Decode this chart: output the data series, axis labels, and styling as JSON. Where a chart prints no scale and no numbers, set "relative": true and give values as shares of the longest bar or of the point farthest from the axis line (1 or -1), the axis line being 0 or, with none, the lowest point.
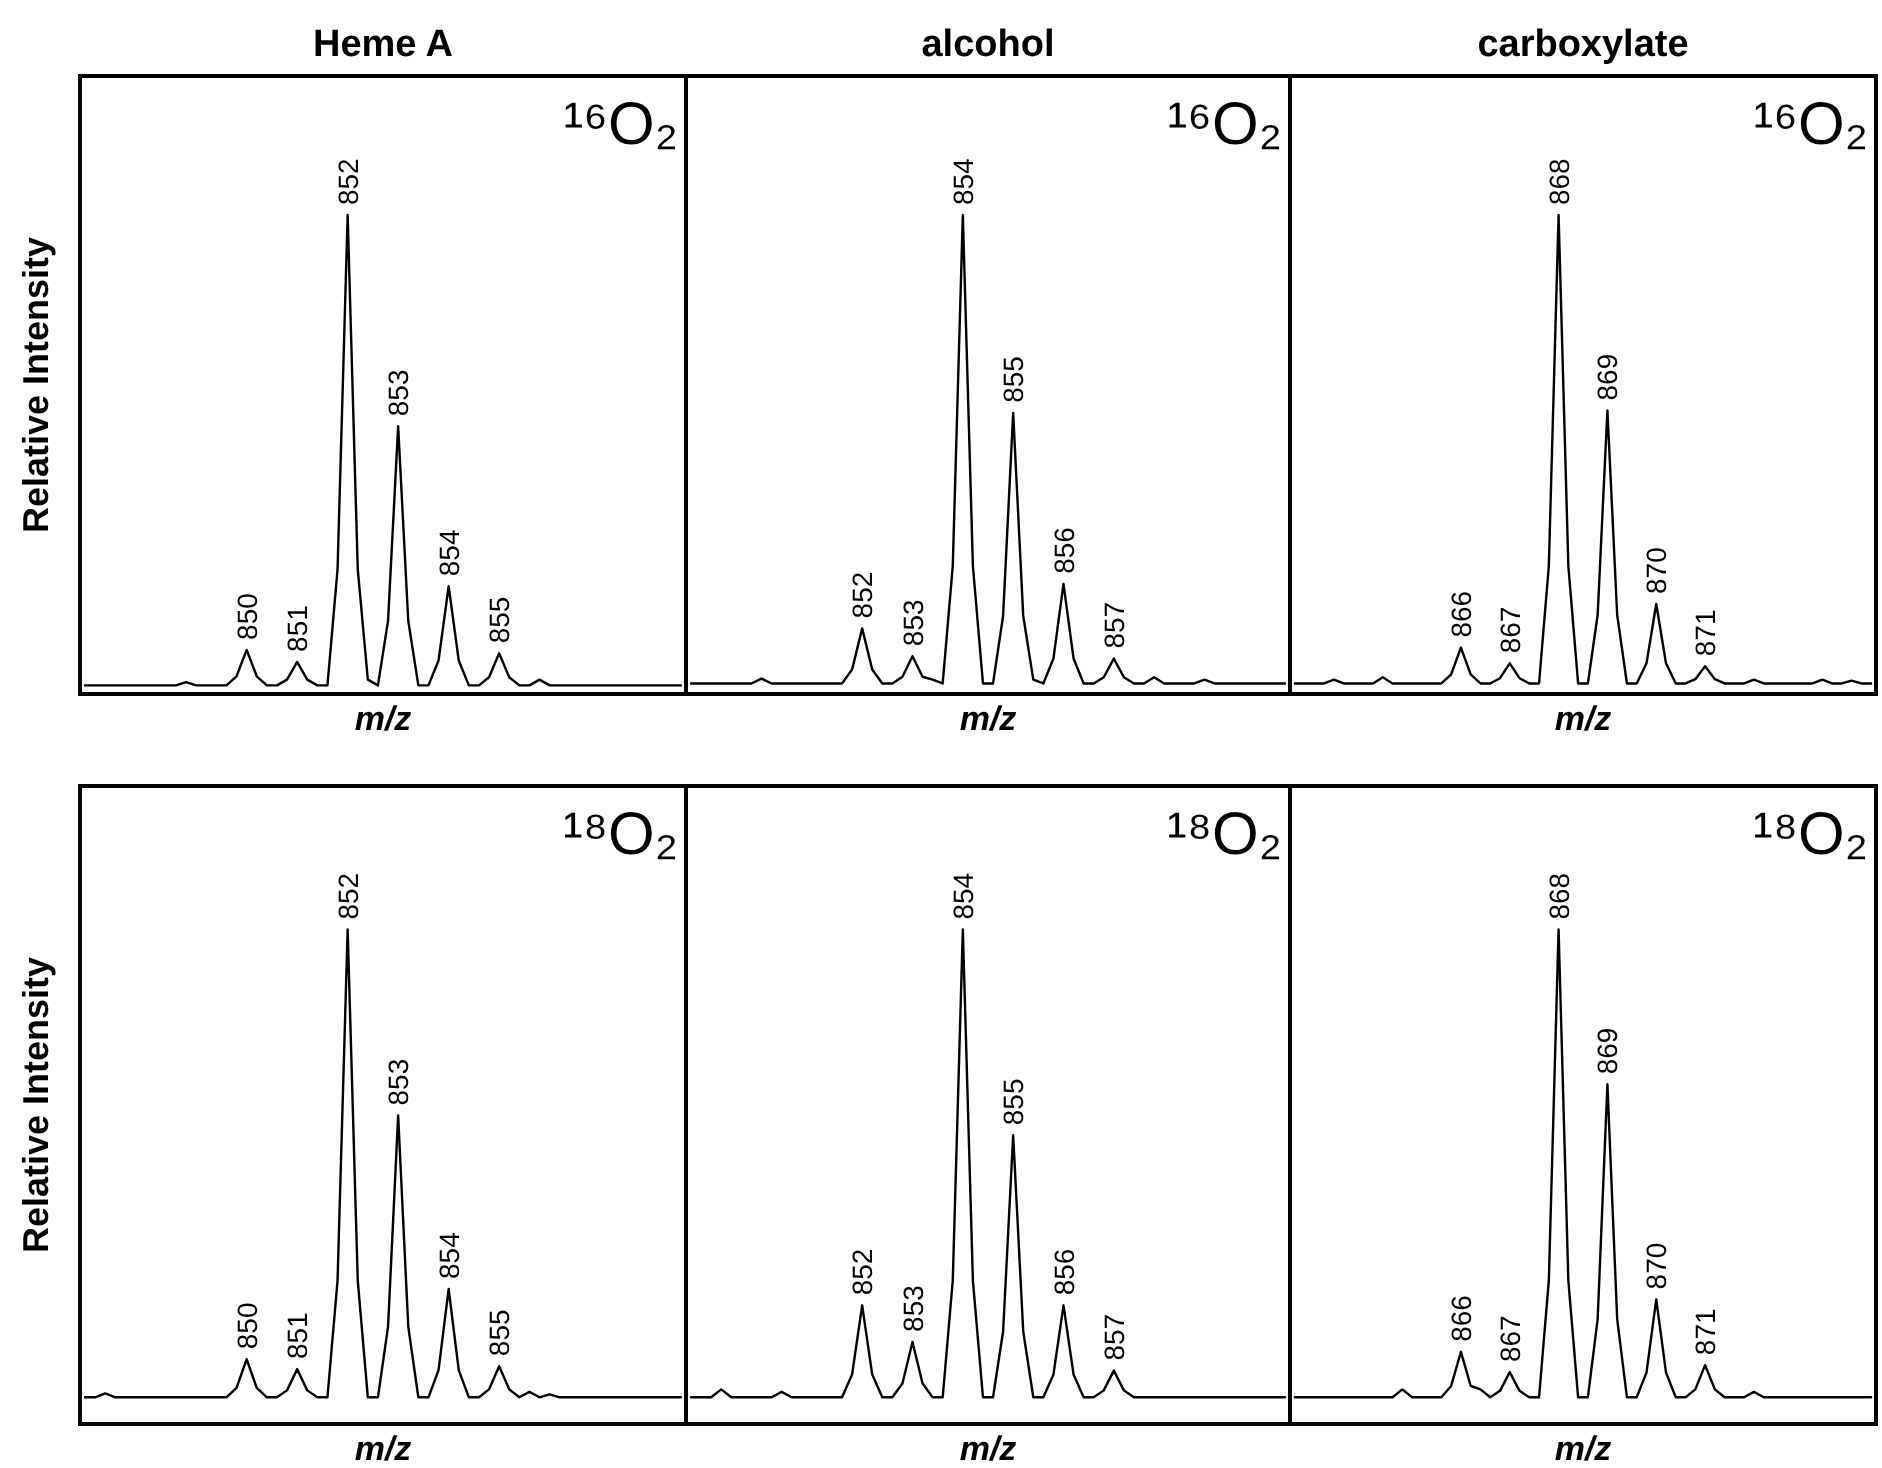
{
  "chart_data": [
    {
      "type": "line",
      "title": "Heme A",
      "xlabel": "m/z",
      "ylabel": "Relative Intensity",
      "relative": true,
      "categories": [
        null,
        null,
        null,
        null,
        null,
        null,
        null,
        null,
        null,
        null,
        null,
        null,
        null,
        null,
        null,
        null,
        null,
        null,
        null,
        null,
        null,
        null,
        null,
        null,
        null,
        null,
        null,
        null,
        null,
        null,
        null,
        null,
        null,
        null,
        null,
        null,
        null,
        null,
        null,
        null,
        null,
        null,
        null,
        null,
        null,
        null,
        null,
        null,
        null,
        null,
        null,
        null,
        null,
        null,
        null,
        null,
        null,
        null,
        null,
        null
      ],
      "series": [
        {
          "color": "#000000",
          "values": [
            0.018,
            0.018,
            0.018,
            0.018,
            0.018,
            0.018,
            0.018,
            0.018,
            0.018,
            0.018,
            0.025,
            0.018,
            0.018,
            0.018,
            0.018,
            0.037,
            0.092,
            0.037,
            0.018,
            0.018,
            0.03,
            0.067,
            0.03,
            0.018,
            0.018,
            0.26,
            1,
            0.26,
            0.03,
            0.018,
            0.153,
            0.559,
            0.153,
            0.018,
            0.018,
            0.07,
            0.225,
            0.07,
            0.018,
            0.018,
            0.035,
            0.085,
            0.035,
            0.018,
            0.018,
            0.03,
            0.018,
            0.018,
            0.018,
            0.018,
            0.018,
            0.018,
            0.018,
            0.018,
            0.018,
            0.018,
            0.018,
            0.018,
            0.018,
            0.018
          ]
        }
      ],
      "annotations": [
        "¹⁶O₂",
        {
          "text": "850",
          "y": 0.092
        },
        {
          "text": "851",
          "y": 0.067
        },
        {
          "text": "852",
          "y": 1
        },
        {
          "text": "853",
          "y": 0.559
        },
        {
          "text": "854",
          "y": 0.225
        },
        {
          "text": "855",
          "y": 0.085
        }
      ]
    },
    {
      "type": "line",
      "title": "alcohol",
      "xlabel": "m/z",
      "relative": true,
      "categories": [
        null,
        null,
        null,
        null,
        null,
        null,
        null,
        null,
        null,
        null,
        null,
        null,
        null,
        null,
        null,
        null,
        null,
        null,
        null,
        null,
        null,
        null,
        null,
        null,
        null,
        null,
        null,
        null,
        null,
        null,
        null,
        null,
        null,
        null,
        null,
        null,
        null,
        null,
        null,
        null,
        null,
        null,
        null,
        null,
        null,
        null,
        null,
        null,
        null,
        null,
        null,
        null,
        null,
        null,
        null,
        null,
        null,
        null,
        null,
        null
      ],
      "series": [
        {
          "color": "#000000",
          "values": [
            0.022,
            0.022,
            0.022,
            0.022,
            0.022,
            0.022,
            0.022,
            0.032,
            0.022,
            0.022,
            0.022,
            0.022,
            0.022,
            0.022,
            0.022,
            0.022,
            0.051,
            0.137,
            0.051,
            0.022,
            0.022,
            0.036,
            0.079,
            0.036,
            0.03,
            0.022,
            0.267,
            1,
            0.267,
            0.022,
            0.022,
            0.163,
            0.587,
            0.163,
            0.03,
            0.022,
            0.074,
            0.23,
            0.074,
            0.022,
            0.022,
            0.035,
            0.074,
            0.035,
            0.022,
            0.022,
            0.035,
            0.022,
            0.022,
            0.022,
            0.022,
            0.03,
            0.022,
            0.022,
            0.022,
            0.022,
            0.022,
            0.022,
            0.022,
            0.022
          ]
        }
      ],
      "annotations": [
        "¹⁶O₂",
        {
          "text": "852",
          "y": 0.137
        },
        {
          "text": "853",
          "y": 0.079
        },
        {
          "text": "854",
          "y": 1
        },
        {
          "text": "855",
          "y": 0.587
        },
        {
          "text": "856",
          "y": 0.23
        },
        {
          "text": "857",
          "y": 0.074
        }
      ]
    },
    {
      "type": "line",
      "title": "carboxylate",
      "xlabel": "m/z",
      "relative": true,
      "categories": [
        null,
        null,
        null,
        null,
        null,
        null,
        null,
        null,
        null,
        null,
        null,
        null,
        null,
        null,
        null,
        null,
        null,
        null,
        null,
        null,
        null,
        null,
        null,
        null,
        null,
        null,
        null,
        null,
        null,
        null,
        null,
        null,
        null,
        null,
        null,
        null,
        null,
        null,
        null,
        null,
        null,
        null,
        null,
        null,
        null,
        null,
        null,
        null,
        null,
        null,
        null,
        null,
        null,
        null,
        null,
        null,
        null,
        null,
        null,
        null
      ],
      "series": [
        {
          "color": "#000000",
          "values": [
            0.022,
            0.022,
            0.022,
            0.022,
            0.03,
            0.022,
            0.022,
            0.022,
            0.022,
            0.035,
            0.022,
            0.022,
            0.022,
            0.022,
            0.022,
            0.022,
            0.041,
            0.097,
            0.041,
            0.022,
            0.022,
            0.033,
            0.064,
            0.033,
            0.022,
            0.022,
            0.267,
            1,
            0.267,
            0.022,
            0.022,
            0.165,
            0.592,
            0.165,
            0.022,
            0.022,
            0.064,
            0.188,
            0.064,
            0.022,
            0.022,
            0.031,
            0.058,
            0.031,
            0.022,
            0.022,
            0.022,
            0.03,
            0.022,
            0.022,
            0.022,
            0.022,
            0.022,
            0.022,
            0.03,
            0.022,
            0.022,
            0.028,
            0.022,
            0.022
          ]
        }
      ],
      "annotations": [
        "¹⁶O₂",
        {
          "text": "866",
          "y": 0.097
        },
        {
          "text": "867",
          "y": 0.064
        },
        {
          "text": "868",
          "y": 1
        },
        {
          "text": "869",
          "y": 0.592
        },
        {
          "text": "870",
          "y": 0.188
        },
        {
          "text": "871",
          "y": 0.058
        }
      ]
    },
    {
      "type": "line",
      "xlabel": "m/z",
      "ylabel": "Relative Intensity",
      "relative": true,
      "categories": [
        null,
        null,
        null,
        null,
        null,
        null,
        null,
        null,
        null,
        null,
        null,
        null,
        null,
        null,
        null,
        null,
        null,
        null,
        null,
        null,
        null,
        null,
        null,
        null,
        null,
        null,
        null,
        null,
        null,
        null,
        null,
        null,
        null,
        null,
        null,
        null,
        null,
        null,
        null,
        null,
        null,
        null,
        null,
        null,
        null,
        null,
        null,
        null,
        null,
        null,
        null,
        null,
        null,
        null,
        null,
        null,
        null,
        null,
        null,
        null
      ],
      "series": [
        {
          "color": "#000000",
          "values": [
            0.054,
            0.054,
            0.062,
            0.054,
            0.054,
            0.054,
            0.054,
            0.054,
            0.054,
            0.054,
            0.054,
            0.054,
            0.054,
            0.054,
            0.054,
            0.073,
            0.131,
            0.073,
            0.054,
            0.054,
            0.068,
            0.111,
            0.068,
            0.054,
            0.054,
            0.29,
            1,
            0.29,
            0.054,
            0.054,
            0.197,
            0.624,
            0.197,
            0.054,
            0.054,
            0.109,
            0.273,
            0.109,
            0.054,
            0.054,
            0.07,
            0.117,
            0.07,
            0.054,
            0.065,
            0.054,
            0.06,
            0.054,
            0.054,
            0.054,
            0.054,
            0.054,
            0.054,
            0.054,
            0.054,
            0.054,
            0.054,
            0.054,
            0.054,
            0.054
          ]
        }
      ],
      "annotations": [
        "¹⁸O₂",
        {
          "text": "850",
          "y": 0.131
        },
        {
          "text": "851",
          "y": 0.111
        },
        {
          "text": "852",
          "y": 1
        },
        {
          "text": "853",
          "y": 0.624
        },
        {
          "text": "854",
          "y": 0.273
        },
        {
          "text": "855",
          "y": 0.117
        }
      ]
    },
    {
      "type": "line",
      "xlabel": "m/z",
      "relative": true,
      "categories": [
        null,
        null,
        null,
        null,
        null,
        null,
        null,
        null,
        null,
        null,
        null,
        null,
        null,
        null,
        null,
        null,
        null,
        null,
        null,
        null,
        null,
        null,
        null,
        null,
        null,
        null,
        null,
        null,
        null,
        null,
        null,
        null,
        null,
        null,
        null,
        null,
        null,
        null,
        null,
        null,
        null,
        null,
        null,
        null,
        null,
        null,
        null,
        null,
        null,
        null,
        null,
        null,
        null,
        null,
        null,
        null,
        null,
        null,
        null,
        null
      ],
      "series": [
        {
          "color": "#000000",
          "values": [
            0.054,
            0.054,
            0.054,
            0.07,
            0.054,
            0.054,
            0.054,
            0.054,
            0.054,
            0.065,
            0.054,
            0.054,
            0.054,
            0.054,
            0.054,
            0.054,
            0.1,
            0.24,
            0.1,
            0.054,
            0.054,
            0.082,
            0.166,
            0.082,
            0.054,
            0.054,
            0.29,
            1,
            0.29,
            0.054,
            0.054,
            0.187,
            0.584,
            0.187,
            0.054,
            0.054,
            0.1,
            0.24,
            0.1,
            0.054,
            0.054,
            0.068,
            0.108,
            0.068,
            0.054,
            0.054,
            0.054,
            0.054,
            0.054,
            0.054,
            0.054,
            0.054,
            0.054,
            0.054,
            0.054,
            0.054,
            0.054,
            0.054,
            0.054,
            0.054
          ]
        }
      ],
      "annotations": [
        "¹⁸O₂",
        {
          "text": "852",
          "y": 0.24
        },
        {
          "text": "853",
          "y": 0.166
        },
        {
          "text": "854",
          "y": 1
        },
        {
          "text": "855",
          "y": 0.584
        },
        {
          "text": "856",
          "y": 0.24
        },
        {
          "text": "857",
          "y": 0.108
        }
      ]
    },
    {
      "type": "line",
      "xlabel": "m/z",
      "relative": true,
      "categories": [
        null,
        null,
        null,
        null,
        null,
        null,
        null,
        null,
        null,
        null,
        null,
        null,
        null,
        null,
        null,
        null,
        null,
        null,
        null,
        null,
        null,
        null,
        null,
        null,
        null,
        null,
        null,
        null,
        null,
        null,
        null,
        null,
        null,
        null,
        null,
        null,
        null,
        null,
        null,
        null,
        null,
        null,
        null,
        null,
        null,
        null,
        null,
        null,
        null,
        null,
        null,
        null,
        null,
        null,
        null,
        null,
        null,
        null,
        null,
        null
      ],
      "series": [
        {
          "color": "#000000",
          "values": [
            0.054,
            0.054,
            0.054,
            0.054,
            0.054,
            0.054,
            0.054,
            0.054,
            0.054,
            0.054,
            0.054,
            0.07,
            0.054,
            0.054,
            0.054,
            0.054,
            0.077,
            0.146,
            0.077,
            0.07,
            0.054,
            0.067,
            0.105,
            0.067,
            0.054,
            0.054,
            0.29,
            1,
            0.29,
            0.054,
            0.054,
            0.212,
            0.687,
            0.212,
            0.054,
            0.054,
            0.104,
            0.252,
            0.104,
            0.054,
            0.054,
            0.07,
            0.119,
            0.07,
            0.054,
            0.054,
            0.054,
            0.065,
            0.054,
            0.054,
            0.054,
            0.054,
            0.054,
            0.054,
            0.054,
            0.054,
            0.054,
            0.054,
            0.054,
            0.054
          ]
        }
      ],
      "annotations": [
        "¹⁸O₂",
        {
          "text": "866",
          "y": 0.146
        },
        {
          "text": "867",
          "y": 0.105
        },
        {
          "text": "868",
          "y": 1
        },
        {
          "text": "869",
          "y": 0.687
        },
        {
          "text": "870",
          "y": 0.252
        },
        {
          "text": "871",
          "y": 0.119
        }
      ]
    }
  ]
}
